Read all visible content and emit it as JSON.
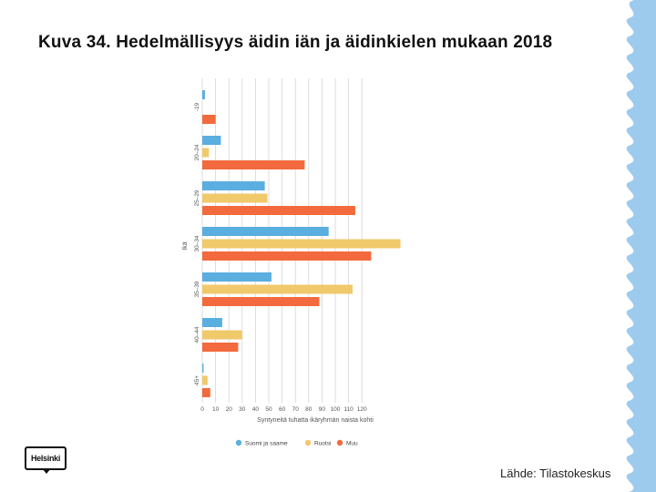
{
  "title": "Kuva 34. Hedelmällisyys äidin iän ja äidinkielen mukaan 2018",
  "source": "Lähde: Tilastokeskus",
  "logo_text": "Helsinki",
  "colors": {
    "suomi_ja_saame": "#5aaee0",
    "ruotsi": "#f0c96b",
    "muu": "#f26a3d",
    "wave": "#9dcbee",
    "grid": "#d6d6d6"
  },
  "chart_data": {
    "type": "bar",
    "orientation": "horizontal",
    "categories": [
      "-19",
      "20–24",
      "25–29",
      "30–34",
      "35–39",
      "40–44",
      "45+"
    ],
    "series": [
      {
        "name": "Suomi ja saame",
        "values": [
          2,
          14,
          47,
          95,
          52,
          15,
          1
        ]
      },
      {
        "name": "Ruotsi",
        "values": [
          0,
          5,
          49,
          149,
          113,
          30,
          4
        ]
      },
      {
        "name": "Muu",
        "values": [
          10,
          77,
          115,
          127,
          88,
          27,
          6
        ]
      }
    ],
    "xlabel": "Syntyneitä tuhatta ikäryhmän naista kohti",
    "ylabel": "Ikä",
    "xticks": [
      0,
      10,
      20,
      30,
      40,
      50,
      60,
      70,
      80,
      90,
      100,
      110,
      120
    ],
    "xlim": [
      0,
      160
    ],
    "grid": true,
    "legend_position": "bottom"
  }
}
